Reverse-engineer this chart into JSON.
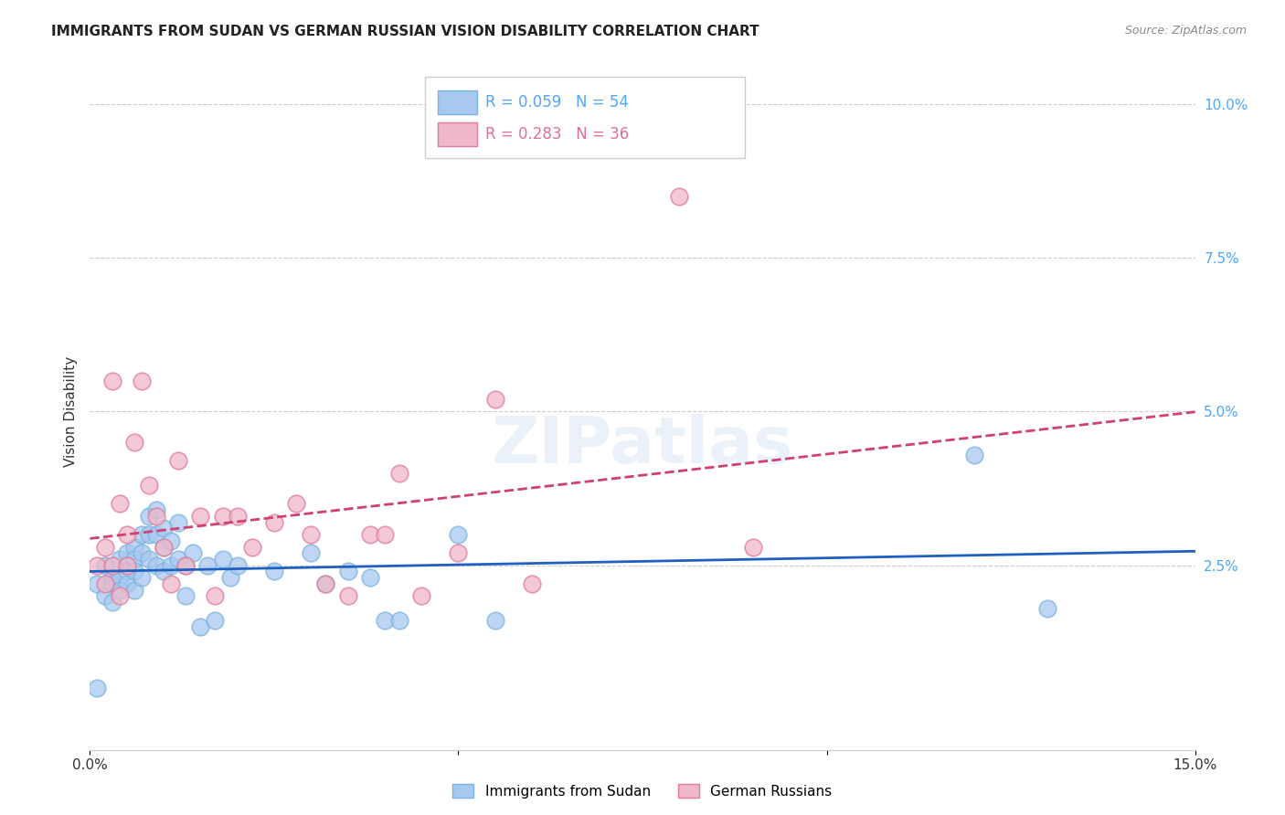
{
  "title": "IMMIGRANTS FROM SUDAN VS GERMAN RUSSIAN VISION DISABILITY CORRELATION CHART",
  "source": "Source: ZipAtlas.com",
  "ylabel": "Vision Disability",
  "xlim": [
    0.0,
    0.15
  ],
  "ylim": [
    -0.005,
    0.105
  ],
  "ytick_labels_right": [
    "2.5%",
    "5.0%",
    "7.5%",
    "10.0%"
  ],
  "ytick_vals_right": [
    0.025,
    0.05,
    0.075,
    0.1
  ],
  "blue_color": "#7ab3e0",
  "pink_color": "#e07a9a",
  "blue_fill": "#a8c8f0",
  "pink_fill": "#f0b8c8",
  "blue_line_color": "#2060c0",
  "pink_line_color": "#d04070",
  "blue_x": [
    0.001,
    0.002,
    0.002,
    0.003,
    0.003,
    0.003,
    0.004,
    0.004,
    0.004,
    0.005,
    0.005,
    0.005,
    0.005,
    0.006,
    0.006,
    0.006,
    0.006,
    0.007,
    0.007,
    0.007,
    0.008,
    0.008,
    0.008,
    0.009,
    0.009,
    0.009,
    0.01,
    0.01,
    0.01,
    0.011,
    0.011,
    0.012,
    0.012,
    0.013,
    0.013,
    0.014,
    0.015,
    0.016,
    0.017,
    0.018,
    0.019,
    0.02,
    0.025,
    0.03,
    0.032,
    0.035,
    0.038,
    0.04,
    0.042,
    0.05,
    0.055,
    0.12,
    0.13,
    0.001
  ],
  "blue_y": [
    0.022,
    0.025,
    0.02,
    0.023,
    0.022,
    0.019,
    0.026,
    0.023,
    0.021,
    0.027,
    0.025,
    0.024,
    0.022,
    0.028,
    0.026,
    0.024,
    0.021,
    0.03,
    0.027,
    0.023,
    0.033,
    0.03,
    0.026,
    0.034,
    0.03,
    0.025,
    0.031,
    0.028,
    0.024,
    0.029,
    0.025,
    0.032,
    0.026,
    0.025,
    0.02,
    0.027,
    0.015,
    0.025,
    0.016,
    0.026,
    0.023,
    0.025,
    0.024,
    0.027,
    0.022,
    0.024,
    0.023,
    0.016,
    0.016,
    0.03,
    0.016,
    0.043,
    0.018,
    0.005
  ],
  "pink_x": [
    0.001,
    0.002,
    0.002,
    0.003,
    0.003,
    0.004,
    0.004,
    0.005,
    0.005,
    0.006,
    0.007,
    0.008,
    0.009,
    0.01,
    0.011,
    0.012,
    0.013,
    0.015,
    0.017,
    0.018,
    0.02,
    0.022,
    0.025,
    0.028,
    0.03,
    0.032,
    0.035,
    0.038,
    0.04,
    0.042,
    0.05,
    0.06,
    0.08,
    0.09,
    0.055,
    0.045
  ],
  "pink_y": [
    0.025,
    0.022,
    0.028,
    0.025,
    0.055,
    0.02,
    0.035,
    0.025,
    0.03,
    0.045,
    0.055,
    0.038,
    0.033,
    0.028,
    0.022,
    0.042,
    0.025,
    0.033,
    0.02,
    0.033,
    0.033,
    0.028,
    0.032,
    0.035,
    0.03,
    0.022,
    0.02,
    0.03,
    0.03,
    0.04,
    0.027,
    0.022,
    0.085,
    0.028,
    0.052,
    0.02
  ]
}
